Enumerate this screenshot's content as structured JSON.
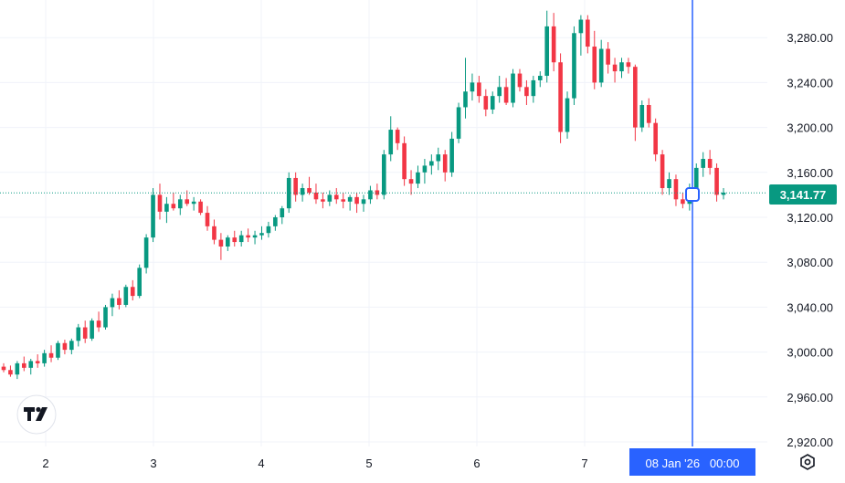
{
  "chart_data": {
    "type": "candlestick",
    "x_ticks": [
      "2",
      "3",
      "4",
      "5",
      "6",
      "7"
    ],
    "y_ticks": [
      "2,920.00",
      "2,960.00",
      "3,000.00",
      "3,040.00",
      "3,080.00",
      "3,120.00",
      "3,160.00",
      "3,200.00",
      "3,240.00",
      "3,280.00"
    ],
    "y_tick_values": [
      2920,
      2960,
      3000,
      3040,
      3080,
      3120,
      3160,
      3200,
      3240,
      3280
    ],
    "ylim": [
      2915,
      3320
    ],
    "last_price": 3141.77,
    "last_price_label": "3,141.77",
    "crosshair_label": "08 Jan '26   00:00",
    "grid": true,
    "colors": {
      "up": "#089981",
      "down": "#f23645",
      "crosshair": "#2962ff",
      "badge": "#089981"
    },
    "candles": [
      [
        2987,
        2990,
        2982,
        2984
      ],
      [
        2984,
        2988,
        2978,
        2980
      ],
      [
        2980,
        2992,
        2976,
        2990
      ],
      [
        2990,
        2996,
        2983,
        2986
      ],
      [
        2986,
        2994,
        2980,
        2992
      ],
      [
        2992,
        2998,
        2986,
        2990
      ],
      [
        2990,
        3002,
        2987,
        2999
      ],
      [
        2999,
        3006,
        2991,
        2995
      ],
      [
        2995,
        3010,
        2993,
        3008
      ],
      [
        3008,
        3011,
        2998,
        3002
      ],
      [
        3002,
        3012,
        2998,
        3010
      ],
      [
        3010,
        3025,
        3005,
        3022
      ],
      [
        3022,
        3028,
        3008,
        3012
      ],
      [
        3012,
        3030,
        3010,
        3028
      ],
      [
        3028,
        3036,
        3018,
        3022
      ],
      [
        3022,
        3042,
        3020,
        3040
      ],
      [
        3040,
        3052,
        3032,
        3048
      ],
      [
        3048,
        3055,
        3038,
        3042
      ],
      [
        3042,
        3060,
        3040,
        3058
      ],
      [
        3058,
        3064,
        3046,
        3050
      ],
      [
        3050,
        3078,
        3048,
        3075
      ],
      [
        3075,
        3105,
        3070,
        3102
      ],
      [
        3102,
        3146,
        3098,
        3140
      ],
      [
        3140,
        3150,
        3118,
        3125
      ],
      [
        3125,
        3138,
        3115,
        3132
      ],
      [
        3132,
        3142,
        3126,
        3128
      ],
      [
        3128,
        3140,
        3122,
        3136
      ],
      [
        3136,
        3144,
        3130,
        3132
      ],
      [
        3132,
        3138,
        3126,
        3134
      ],
      [
        3134,
        3136,
        3122,
        3124
      ],
      [
        3124,
        3130,
        3108,
        3112
      ],
      [
        3112,
        3118,
        3096,
        3100
      ],
      [
        3100,
        3106,
        3082,
        3094
      ],
      [
        3094,
        3104,
        3090,
        3102
      ],
      [
        3102,
        3108,
        3094,
        3098
      ],
      [
        3098,
        3108,
        3094,
        3104
      ],
      [
        3104,
        3110,
        3098,
        3102
      ],
      [
        3102,
        3108,
        3096,
        3104
      ],
      [
        3104,
        3112,
        3100,
        3106
      ],
      [
        3106,
        3116,
        3102,
        3112
      ],
      [
        3112,
        3122,
        3108,
        3120
      ],
      [
        3120,
        3130,
        3114,
        3128
      ],
      [
        3128,
        3160,
        3124,
        3155
      ],
      [
        3155,
        3160,
        3134,
        3140
      ],
      [
        3140,
        3150,
        3134,
        3146
      ],
      [
        3146,
        3156,
        3140,
        3142
      ],
      [
        3142,
        3150,
        3132,
        3136
      ],
      [
        3136,
        3142,
        3128,
        3134
      ],
      [
        3134,
        3144,
        3130,
        3140
      ],
      [
        3140,
        3146,
        3132,
        3136
      ],
      [
        3136,
        3142,
        3128,
        3134
      ],
      [
        3134,
        3140,
        3126,
        3138
      ],
      [
        3138,
        3142,
        3124,
        3132
      ],
      [
        3132,
        3140,
        3125,
        3136
      ],
      [
        3136,
        3148,
        3132,
        3144
      ],
      [
        3144,
        3150,
        3136,
        3140
      ],
      [
        3140,
        3180,
        3136,
        3176
      ],
      [
        3176,
        3210,
        3170,
        3198
      ],
      [
        3198,
        3200,
        3180,
        3186
      ],
      [
        3186,
        3192,
        3148,
        3154
      ],
      [
        3154,
        3162,
        3140,
        3150
      ],
      [
        3150,
        3166,
        3146,
        3160
      ],
      [
        3160,
        3172,
        3150,
        3166
      ],
      [
        3166,
        3176,
        3158,
        3170
      ],
      [
        3170,
        3182,
        3162,
        3176
      ],
      [
        3176,
        3180,
        3152,
        3160
      ],
      [
        3160,
        3196,
        3156,
        3190
      ],
      [
        3190,
        3222,
        3186,
        3218
      ],
      [
        3218,
        3262,
        3208,
        3232
      ],
      [
        3232,
        3248,
        3224,
        3240
      ],
      [
        3240,
        3246,
        3222,
        3228
      ],
      [
        3228,
        3234,
        3210,
        3216
      ],
      [
        3216,
        3232,
        3212,
        3228
      ],
      [
        3228,
        3246,
        3222,
        3236
      ],
      [
        3236,
        3244,
        3220,
        3222
      ],
      [
        3222,
        3252,
        3218,
        3248
      ],
      [
        3248,
        3252,
        3232,
        3236
      ],
      [
        3236,
        3242,
        3220,
        3228
      ],
      [
        3228,
        3246,
        3222,
        3242
      ],
      [
        3242,
        3250,
        3236,
        3246
      ],
      [
        3246,
        3304,
        3240,
        3290
      ],
      [
        3290,
        3302,
        3250,
        3258
      ],
      [
        3258,
        3266,
        3186,
        3196
      ],
      [
        3196,
        3232,
        3190,
        3226
      ],
      [
        3226,
        3290,
        3220,
        3284
      ],
      [
        3284,
        3300,
        3264,
        3296
      ],
      [
        3296,
        3300,
        3266,
        3272
      ],
      [
        3272,
        3286,
        3234,
        3240
      ],
      [
        3240,
        3278,
        3236,
        3270
      ],
      [
        3270,
        3276,
        3248,
        3256
      ],
      [
        3256,
        3262,
        3240,
        3250
      ],
      [
        3250,
        3262,
        3244,
        3258
      ],
      [
        3258,
        3262,
        3248,
        3254
      ],
      [
        3254,
        3256,
        3188,
        3200
      ],
      [
        3200,
        3224,
        3196,
        3220
      ],
      [
        3220,
        3226,
        3200,
        3204
      ],
      [
        3204,
        3208,
        3170,
        3176
      ],
      [
        3176,
        3180,
        3140,
        3146
      ],
      [
        3146,
        3160,
        3140,
        3154
      ],
      [
        3154,
        3158,
        3130,
        3136
      ],
      [
        3136,
        3142,
        3128,
        3132
      ],
      [
        3132,
        3150,
        3126,
        3146
      ],
      [
        3146,
        3168,
        3140,
        3164
      ],
      [
        3164,
        3178,
        3156,
        3172
      ],
      [
        3172,
        3180,
        3158,
        3164
      ],
      [
        3164,
        3168,
        3134,
        3140
      ],
      [
        3140,
        3146,
        3136,
        3142
      ]
    ]
  },
  "crosshair": {
    "label": "08 Jan '26   00:00"
  },
  "logo": {
    "name": "tradingview-logo-icon"
  },
  "settings_icon": {
    "name": "settings-icon"
  }
}
